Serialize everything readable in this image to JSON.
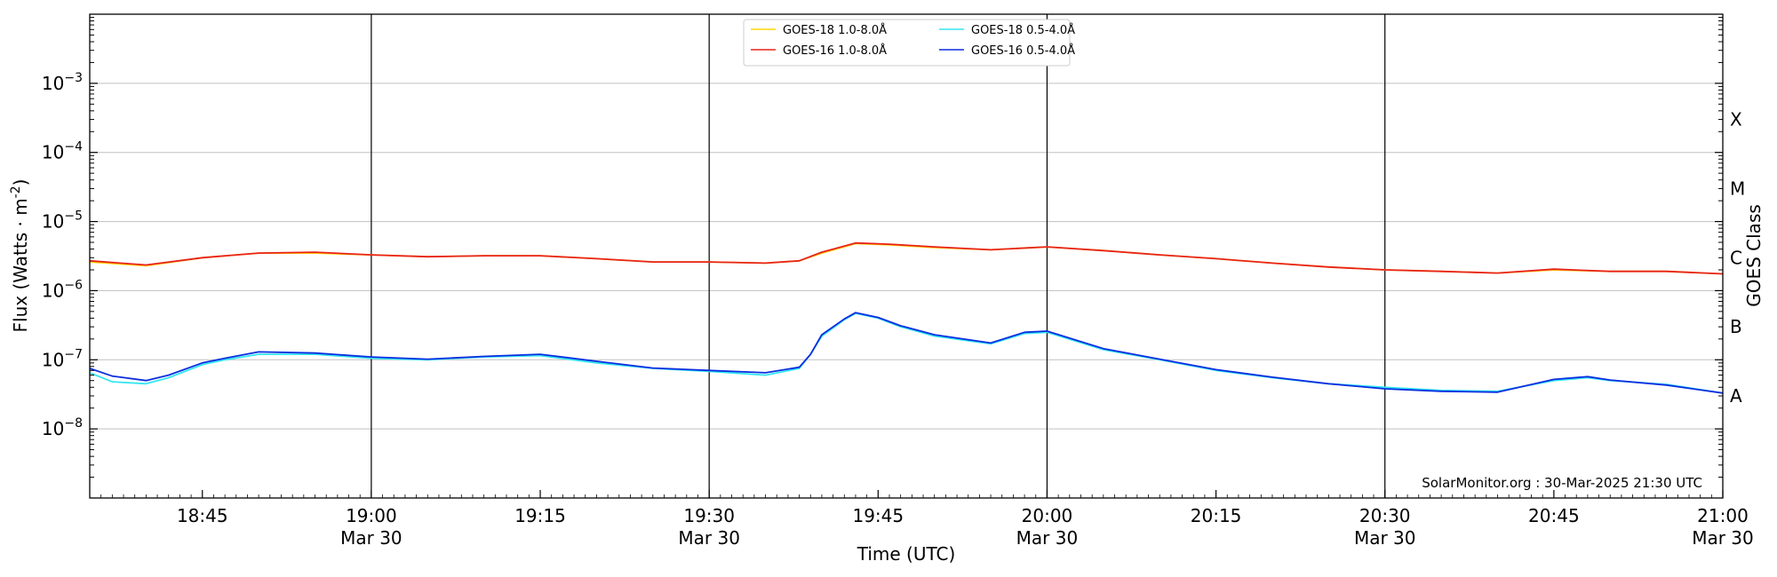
{
  "chart_data": {
    "type": "line",
    "xlabel": "Time (UTC)",
    "ylabel": "Flux (Watts · m",
    "ylabel_sup": "-2",
    "ylabel_close": ")",
    "right_label": "GOES Class",
    "y_scale": "log",
    "ylim": [
      1e-09,
      0.01
    ],
    "xlim": [
      "18:35",
      "21:00"
    ],
    "grid": "horizontal at decades, vertical lines at half hours",
    "watermark": "SolarMonitor.org : 30-Mar-2025 21:30 UTC",
    "yticks": [
      {
        "value": 1e-08,
        "base": "10",
        "exp": "−8"
      },
      {
        "value": 1e-07,
        "base": "10",
        "exp": "−7"
      },
      {
        "value": 1e-06,
        "base": "10",
        "exp": "−6"
      },
      {
        "value": 1e-05,
        "base": "10",
        "exp": "−5"
      },
      {
        "value": 0.0001,
        "base": "10",
        "exp": "−4"
      },
      {
        "value": 0.001,
        "base": "10",
        "exp": "−3"
      }
    ],
    "xticks": [
      {
        "time": "18:45",
        "label": "18:45",
        "sub": ""
      },
      {
        "time": "19:00",
        "label": "19:00",
        "sub": "Mar 30"
      },
      {
        "time": "19:15",
        "label": "19:15",
        "sub": ""
      },
      {
        "time": "19:30",
        "label": "19:30",
        "sub": "Mar 30"
      },
      {
        "time": "19:45",
        "label": "19:45",
        "sub": ""
      },
      {
        "time": "20:00",
        "label": "20:00",
        "sub": "Mar 30"
      },
      {
        "time": "20:15",
        "label": "20:15",
        "sub": ""
      },
      {
        "time": "20:30",
        "label": "20:30",
        "sub": "Mar 30"
      },
      {
        "time": "20:45",
        "label": "20:45",
        "sub": ""
      },
      {
        "time": "21:00",
        "label": "21:00",
        "sub": "Mar 30"
      }
    ],
    "vlines": [
      "19:00",
      "19:30",
      "20:00",
      "20:30"
    ],
    "goes_classes": [
      {
        "label": "A",
        "value": 3e-08
      },
      {
        "label": "B",
        "value": 3e-07
      },
      {
        "label": "C",
        "value": 3e-06
      },
      {
        "label": "M",
        "value": 3e-05
      },
      {
        "label": "X",
        "value": 0.0003
      }
    ],
    "series": [
      {
        "name": "GOES-18 1.0-8.0Å",
        "color": "#ffd700",
        "x": [
          "18:35",
          "18:40",
          "18:45",
          "18:50",
          "18:55",
          "19:00",
          "19:05",
          "19:10",
          "19:15",
          "19:20",
          "19:25",
          "19:30",
          "19:35",
          "19:38",
          "19:40",
          "19:43",
          "19:46",
          "19:50",
          "19:55",
          "20:00",
          "20:05",
          "20:10",
          "20:15",
          "20:20",
          "20:25",
          "20:30",
          "20:35",
          "20:40",
          "20:45",
          "20:50",
          "20:55",
          "21:00"
        ],
        "values": [
          2.6e-06,
          2.3e-06,
          3e-06,
          3.5e-06,
          3.5e-06,
          3.3e-06,
          3.1e-06,
          3.2e-06,
          3.2e-06,
          2.9e-06,
          2.6e-06,
          2.6e-06,
          2.5e-06,
          2.7e-06,
          3.5e-06,
          4.8e-06,
          4.6e-06,
          4.2e-06,
          3.9e-06,
          4.3e-06,
          3.8e-06,
          3.3e-06,
          2.9e-06,
          2.5e-06,
          2.2e-06,
          2e-06,
          1.9e-06,
          1.8e-06,
          2e-06,
          1.9e-06,
          1.9e-06,
          1.75e-06
        ]
      },
      {
        "name": "GOES-16 1.0-8.0Å",
        "color": "#e8231a",
        "x": [
          "18:35",
          "18:40",
          "18:45",
          "18:50",
          "18:55",
          "19:00",
          "19:05",
          "19:10",
          "19:15",
          "19:20",
          "19:25",
          "19:30",
          "19:35",
          "19:38",
          "19:40",
          "19:43",
          "19:46",
          "19:50",
          "19:55",
          "20:00",
          "20:05",
          "20:10",
          "20:15",
          "20:20",
          "20:25",
          "20:30",
          "20:35",
          "20:40",
          "20:45",
          "20:50",
          "20:55",
          "21:00"
        ],
        "values": [
          2.7e-06,
          2.35e-06,
          3e-06,
          3.5e-06,
          3.6e-06,
          3.3e-06,
          3.1e-06,
          3.2e-06,
          3.2e-06,
          2.9e-06,
          2.6e-06,
          2.6e-06,
          2.5e-06,
          2.7e-06,
          3.6e-06,
          4.9e-06,
          4.7e-06,
          4.3e-06,
          3.9e-06,
          4.3e-06,
          3.8e-06,
          3.3e-06,
          2.9e-06,
          2.5e-06,
          2.2e-06,
          2e-06,
          1.9e-06,
          1.8e-06,
          2.05e-06,
          1.9e-06,
          1.9e-06,
          1.75e-06
        ]
      },
      {
        "name": "GOES-18 0.5-4.0Å",
        "color": "#33e6f0",
        "x": [
          "18:35",
          "18:37",
          "18:40",
          "18:42",
          "18:45",
          "18:47",
          "18:50",
          "18:55",
          "19:00",
          "19:05",
          "19:10",
          "19:15",
          "19:20",
          "19:25",
          "19:30",
          "19:35",
          "19:38",
          "19:39",
          "19:40",
          "19:42",
          "19:43",
          "19:45",
          "19:47",
          "19:50",
          "19:55",
          "19:58",
          "20:00",
          "20:05",
          "20:10",
          "20:15",
          "20:20",
          "20:25",
          "20:30",
          "20:35",
          "20:40",
          "20:45",
          "20:48",
          "20:50",
          "20:55",
          "21:00"
        ],
        "values": [
          6.5e-08,
          4.8e-08,
          4.5e-08,
          5.5e-08,
          8.5e-08,
          1e-07,
          1.2e-07,
          1.2e-07,
          1.05e-07,
          1e-07,
          1.1e-07,
          1.15e-07,
          9e-08,
          7.5e-08,
          6.8e-08,
          6e-08,
          7.5e-08,
          1.2e-07,
          2.2e-07,
          3.8e-07,
          4.7e-07,
          4e-07,
          3e-07,
          2.2e-07,
          1.7e-07,
          2.4e-07,
          2.5e-07,
          1.4e-07,
          1e-07,
          7e-08,
          5.5e-08,
          4.5e-08,
          4e-08,
          3.6e-08,
          3.5e-08,
          5e-08,
          5.5e-08,
          5e-08,
          4.4e-08,
          3.3e-08
        ]
      },
      {
        "name": "GOES-16 0.5-4.0Å",
        "color": "#0a2ee0",
        "x": [
          "18:35",
          "18:37",
          "18:40",
          "18:42",
          "18:45",
          "18:47",
          "18:50",
          "18:55",
          "19:00",
          "19:05",
          "19:10",
          "19:15",
          "19:20",
          "19:25",
          "19:30",
          "19:35",
          "19:38",
          "19:39",
          "19:40",
          "19:42",
          "19:43",
          "19:45",
          "19:47",
          "19:50",
          "19:55",
          "19:58",
          "20:00",
          "20:05",
          "20:10",
          "20:15",
          "20:20",
          "20:25",
          "20:30",
          "20:35",
          "20:40",
          "20:45",
          "20:48",
          "20:50",
          "20:55",
          "21:00"
        ],
        "values": [
          7.5e-08,
          5.8e-08,
          5e-08,
          6e-08,
          9e-08,
          1.05e-07,
          1.3e-07,
          1.25e-07,
          1.1e-07,
          1.02e-07,
          1.12e-07,
          1.2e-07,
          9.5e-08,
          7.6e-08,
          7e-08,
          6.5e-08,
          7.8e-08,
          1.2e-07,
          2.3e-07,
          3.9e-07,
          4.8e-07,
          4.1e-07,
          3.1e-07,
          2.3e-07,
          1.75e-07,
          2.5e-07,
          2.6e-07,
          1.45e-07,
          1.02e-07,
          7.2e-08,
          5.6e-08,
          4.5e-08,
          3.8e-08,
          3.5e-08,
          3.4e-08,
          5.2e-08,
          5.7e-08,
          5.1e-08,
          4.3e-08,
          3.3e-08
        ]
      }
    ]
  }
}
